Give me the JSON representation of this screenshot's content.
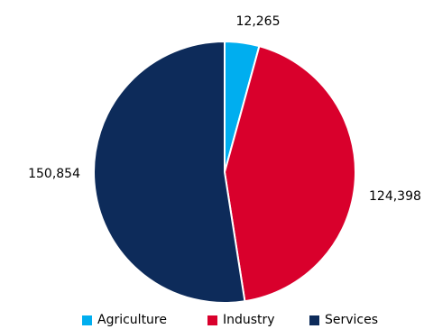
{
  "chart_data": {
    "type": "pie",
    "title": "",
    "categories": [
      "Agriculture",
      "Industry",
      "Services"
    ],
    "values": [
      12265,
      124398,
      150854
    ],
    "data_labels": [
      "12,265",
      "124,398",
      "150,854"
    ],
    "colors": [
      "#00aeef",
      "#d9002c",
      "#0d2b5a"
    ],
    "start_angle": "12 o'clock",
    "direction": "clockwise",
    "legend_position": "bottom"
  }
}
